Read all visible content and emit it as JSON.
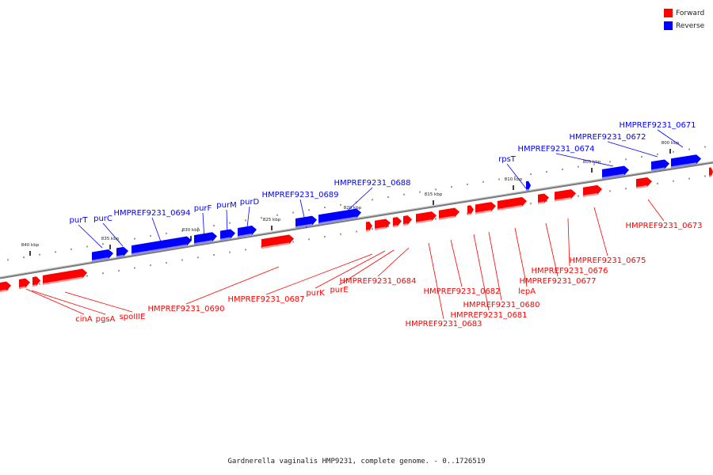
{
  "legend": {
    "forward": {
      "label": "Forward",
      "color": "#ff0000"
    },
    "reverse": {
      "label": "Reverse",
      "color": "#0000ff"
    }
  },
  "caption": "Gardnerella vaginalis HMP9231, complete genome. - 0..1726519",
  "scale_labels": [
    "840 kbp",
    "835 kbp",
    "830 kbp",
    "825 kbp",
    "820 kbp",
    "815 kbp",
    "810 kbp",
    "805 kbp",
    "800 kbp"
  ],
  "reverse_gene_labels": [
    "purT",
    "purC",
    "HMPREF9231_0694",
    "purF",
    "purM",
    "purD",
    "HMPREF9231_0689",
    "HMPREF9231_0688",
    "rpsT",
    "HMPREF9231_0674",
    "HMPREF9231_0672",
    "HMPREF9231_0671"
  ],
  "forward_gene_labels": [
    "cinA",
    "pgsA",
    "spoIIIE",
    "HMPREF9231_0690",
    "HMPREF9231_0687",
    "purK",
    "purE",
    "HMPREF9231_0684",
    "HMPREF9231_0683",
    "HMPREF9231_0682",
    "HMPREF9231_0681",
    "HMPREF9231_0680",
    "lepA",
    "HMPREF9231_0677",
    "HMPREF9231_0676",
    "HMPREF9231_0675",
    "HMPREF9231_0673"
  ]
}
